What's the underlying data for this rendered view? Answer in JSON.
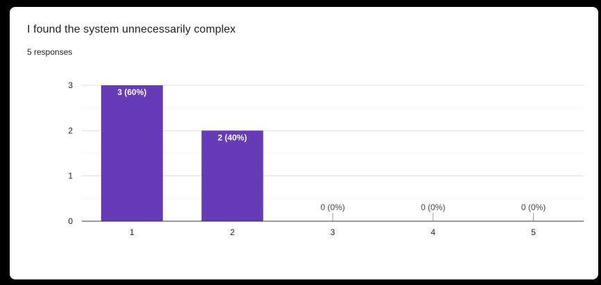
{
  "card": {
    "title": "I found the system unnecessarily complex",
    "subtitle": "5 responses"
  },
  "chart_data": {
    "type": "bar",
    "title": "I found the system unnecessarily complex",
    "subtitle": "5 responses",
    "categories": [
      "1",
      "2",
      "3",
      "4",
      "5"
    ],
    "values": [
      3,
      2,
      0,
      0,
      0
    ],
    "data_labels": [
      "3 (60%)",
      "2 (40%)",
      "0 (0%)",
      "0 (0%)",
      "0 (0%)"
    ],
    "ylim": [
      0,
      3
    ],
    "yticks": [
      0,
      1,
      2,
      3
    ],
    "xlabel": "",
    "ylabel": "",
    "grid": true,
    "legend": "none",
    "colors": {
      "bar": "#673ab7",
      "label_inside": "#ffffff",
      "label_outside": "#444444",
      "grid": "#e0e0e0",
      "axis": "#333333"
    }
  }
}
